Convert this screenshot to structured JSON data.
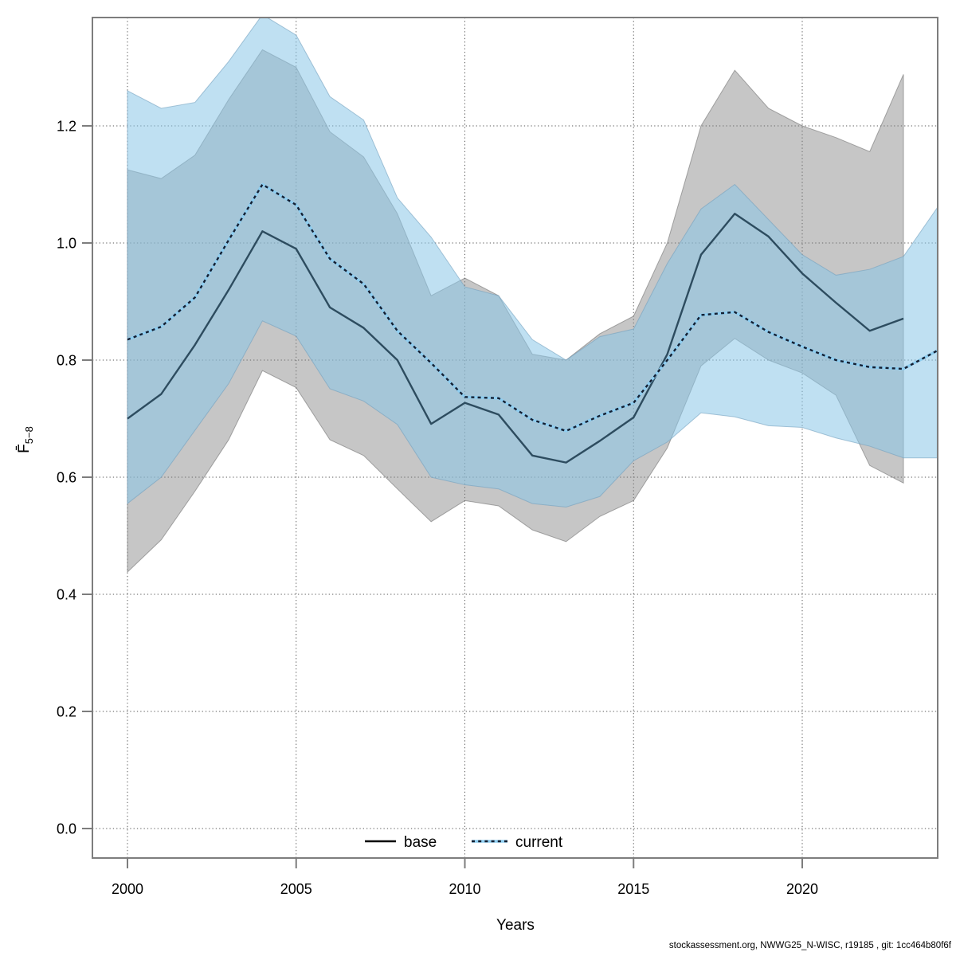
{
  "page": {
    "background": "#ffffff"
  },
  "axes": {
    "x": {
      "label": "Years",
      "ticks": [
        {
          "label": "2000",
          "value": 2000
        },
        {
          "label": "2005",
          "value": 2005
        },
        {
          "label": "2010",
          "value": 2010
        },
        {
          "label": "2015",
          "value": 2015
        },
        {
          "label": "2020",
          "value": 2020
        }
      ]
    },
    "y": {
      "label_main": "F̄",
      "label_sub": "5−8",
      "ticks": [
        {
          "label": "0.0",
          "value": 0.0
        },
        {
          "label": "0.2",
          "value": 0.2
        },
        {
          "label": "0.4",
          "value": 0.4
        },
        {
          "label": "0.6",
          "value": 0.6
        },
        {
          "label": "0.8",
          "value": 0.8
        },
        {
          "label": "1.0",
          "value": 1.0
        },
        {
          "label": "1.2",
          "value": 1.2
        }
      ]
    }
  },
  "legend": {
    "items": [
      {
        "label": "base",
        "style": "solid-black-line"
      },
      {
        "label": "current",
        "style": "dotted-blue-line"
      }
    ]
  },
  "footer": {
    "attribution": "stockassessment.org, NWWG25_N-WISC, r19185 , git: 1cc464b80f6f"
  },
  "colors": {
    "base_band": "rgba(128,128,128,0.45)",
    "base_band_edge": "rgba(105,105,105,0.55)",
    "current_band": "rgba(139,199,231,0.55)",
    "current_band_edge": "rgba(115,160,190,0.6)",
    "base_line": "rgba(5,35,55,0.75)",
    "current_line_core": "#8ecdf0",
    "current_line_dash": "rgba(0,0,15,0.85)",
    "legend_base_line": "#000000",
    "grid": "#3a3a3a",
    "frame": "#7d7d7d",
    "tick": "#7d7d7d",
    "text": "#000000"
  },
  "chart_data": {
    "type": "line",
    "title": "",
    "xlabel": "Years",
    "ylabel": "F̄5−8",
    "grid": true,
    "legend_position": "bottom",
    "xlim": [
      1998.96,
      2024.0
    ],
    "ylim": [
      -0.05,
      1.385
    ],
    "x_ticks": [
      2000,
      2005,
      2010,
      2015,
      2020
    ],
    "y_ticks": [
      0.0,
      0.2,
      0.4,
      0.6,
      0.8,
      1.0,
      1.2
    ],
    "series": [
      {
        "name": "base",
        "line_style": "solid",
        "band_color_hint": "gray",
        "x": [
          2000,
          2001,
          2002,
          2003,
          2004,
          2005,
          2006,
          2007,
          2008,
          2009,
          2010,
          2011,
          2012,
          2013,
          2014,
          2015,
          2016,
          2017,
          2018,
          2019,
          2020,
          2021,
          2022,
          2023
        ],
        "mean": [
          0.7,
          0.742,
          0.826,
          0.92,
          1.02,
          0.99,
          0.89,
          0.855,
          0.8,
          0.691,
          0.727,
          0.707,
          0.637,
          0.625,
          0.662,
          0.702,
          0.81,
          0.98,
          1.05,
          1.011,
          0.948,
          0.898,
          0.85,
          0.871
        ],
        "lower": [
          0.438,
          0.493,
          0.576,
          0.664,
          0.782,
          0.753,
          0.664,
          0.637,
          0.58,
          0.524,
          0.56,
          0.551,
          0.51,
          0.49,
          0.533,
          0.56,
          0.65,
          0.79,
          0.837,
          0.8,
          0.778,
          0.74,
          0.62,
          0.59
        ],
        "upper": [
          1.125,
          1.11,
          1.15,
          1.245,
          1.33,
          1.3,
          1.19,
          1.147,
          1.05,
          0.91,
          0.94,
          0.91,
          0.81,
          0.8,
          0.845,
          0.875,
          1.0,
          1.2,
          1.295,
          1.23,
          1.2,
          1.18,
          1.156,
          1.288
        ]
      },
      {
        "name": "current",
        "line_style": "dotted",
        "band_color_hint": "lightblue",
        "x": [
          2000,
          2001,
          2002,
          2003,
          2004,
          2005,
          2006,
          2007,
          2008,
          2009,
          2010,
          2011,
          2012,
          2013,
          2014,
          2015,
          2016,
          2017,
          2018,
          2019,
          2020,
          2021,
          2022,
          2023,
          2024
        ],
        "mean": [
          0.835,
          0.857,
          0.907,
          1.005,
          1.1,
          1.065,
          0.973,
          0.93,
          0.85,
          0.795,
          0.737,
          0.735,
          0.698,
          0.679,
          0.705,
          0.727,
          0.8,
          0.877,
          0.882,
          0.848,
          0.823,
          0.8,
          0.788,
          0.785,
          0.816
        ],
        "lower": [
          0.555,
          0.6,
          0.68,
          0.76,
          0.867,
          0.841,
          0.751,
          0.73,
          0.69,
          0.6,
          0.587,
          0.58,
          0.555,
          0.549,
          0.567,
          0.628,
          0.66,
          0.71,
          0.703,
          0.688,
          0.685,
          0.667,
          0.653,
          0.633,
          0.633
        ],
        "upper": [
          1.26,
          1.23,
          1.24,
          1.31,
          1.39,
          1.355,
          1.25,
          1.21,
          1.077,
          1.01,
          0.925,
          0.91,
          0.835,
          0.8,
          0.84,
          0.853,
          0.965,
          1.058,
          1.1,
          1.04,
          0.98,
          0.945,
          0.955,
          0.977,
          1.06
        ]
      }
    ]
  }
}
